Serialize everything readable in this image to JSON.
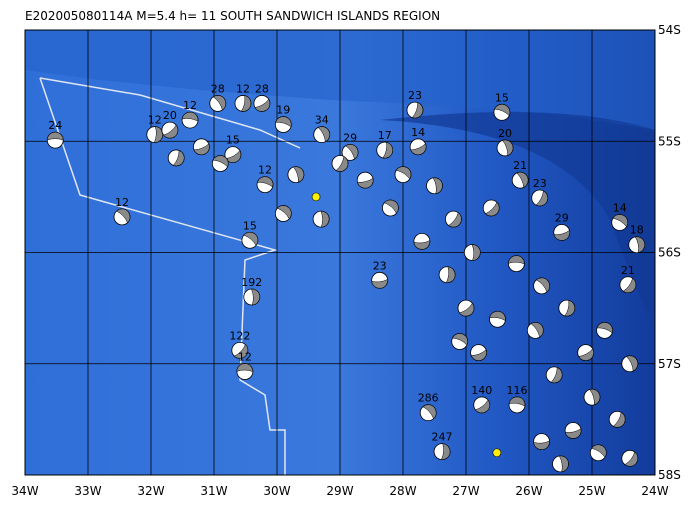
{
  "header": {
    "title": "E202005080114A  M=5.4  h= 11  SOUTH SANDWICH ISLANDS REGION"
  },
  "map": {
    "xlim": [
      -34,
      -24
    ],
    "ylim": [
      -58,
      -54
    ],
    "xticks": [
      {
        "value": -34,
        "label": "34W"
      },
      {
        "value": -33,
        "label": "33W"
      },
      {
        "value": -32,
        "label": "32W"
      },
      {
        "value": -31,
        "label": "31W"
      },
      {
        "value": -30,
        "label": "30W"
      },
      {
        "value": -29,
        "label": "29W"
      },
      {
        "value": -28,
        "label": "28W"
      },
      {
        "value": -27,
        "label": "27W"
      },
      {
        "value": -26,
        "label": "26W"
      },
      {
        "value": -25,
        "label": "25W"
      },
      {
        "value": -24,
        "label": "24W"
      }
    ],
    "yticks": [
      {
        "value": -54,
        "label": "54S"
      },
      {
        "value": -55,
        "label": "55S"
      },
      {
        "value": -56,
        "label": "56S"
      },
      {
        "value": -57,
        "label": "57S"
      },
      {
        "value": -58,
        "label": "58S"
      }
    ],
    "highlight": [
      {
        "lon": -29.38,
        "lat": -55.5
      },
      {
        "lon": -26.51,
        "lat": -57.8
      }
    ],
    "events": [
      {
        "lon": -33.52,
        "lat": -54.99,
        "depth": 24
      },
      {
        "lon": -32.46,
        "lat": -55.68,
        "depth": 12
      },
      {
        "lon": -31.94,
        "lat": -54.94,
        "depth": 12
      },
      {
        "lon": -31.7,
        "lat": -54.9,
        "depth": 20
      },
      {
        "lon": -31.38,
        "lat": -54.81,
        "depth": 12
      },
      {
        "lon": -30.94,
        "lat": -54.66,
        "depth": 28
      },
      {
        "lon": -30.54,
        "lat": -54.66,
        "depth": 12
      },
      {
        "lon": -30.24,
        "lat": -54.66,
        "depth": 28
      },
      {
        "lon": -29.9,
        "lat": -54.85,
        "depth": 19
      },
      {
        "lon": -29.29,
        "lat": -54.94,
        "depth": 34
      },
      {
        "lon": -27.81,
        "lat": -54.72,
        "depth": 23
      },
      {
        "lon": -27.76,
        "lat": -55.05,
        "depth": 14
      },
      {
        "lon": -26.43,
        "lat": -54.74,
        "depth": 15
      },
      {
        "lon": -26.38,
        "lat": -55.06,
        "depth": 20
      },
      {
        "lon": -25.83,
        "lat": -55.51,
        "depth": 23
      },
      {
        "lon": -25.48,
        "lat": -55.82,
        "depth": 29
      },
      {
        "lon": -24.56,
        "lat": -55.73,
        "depth": 14
      },
      {
        "lon": -24.29,
        "lat": -55.93,
        "depth": 18
      },
      {
        "lon": -24.43,
        "lat": -56.29,
        "depth": 21
      },
      {
        "lon": -28.37,
        "lat": -56.25,
        "depth": 23
      },
      {
        "lon": -30.43,
        "lat": -55.89,
        "depth": 15
      },
      {
        "lon": -30.4,
        "lat": -56.4,
        "depth": 192
      },
      {
        "lon": -30.59,
        "lat": -56.88,
        "depth": 122
      },
      {
        "lon": -30.51,
        "lat": -57.07,
        "depth": 12
      },
      {
        "lon": -27.6,
        "lat": -57.44,
        "depth": 286
      },
      {
        "lon": -27.38,
        "lat": -57.79,
        "depth": 247
      },
      {
        "lon": -26.75,
        "lat": -57.37,
        "depth": 140
      },
      {
        "lon": -26.19,
        "lat": -57.37,
        "depth": 116
      },
      {
        "lon": -28.84,
        "lat": -55.1,
        "depth": 29
      },
      {
        "lon": -28.29,
        "lat": -55.08,
        "depth": 17
      },
      {
        "lon": -30.7,
        "lat": -55.12,
        "depth": 15
      },
      {
        "lon": -30.19,
        "lat": -55.39,
        "depth": 12
      },
      {
        "lon": -26.14,
        "lat": -55.35,
        "depth": 21
      },
      {
        "lon": -31.6,
        "lat": -55.15
      },
      {
        "lon": -31.2,
        "lat": -55.05
      },
      {
        "lon": -30.9,
        "lat": -55.2
      },
      {
        "lon": -29.7,
        "lat": -55.3
      },
      {
        "lon": -29.0,
        "lat": -55.2
      },
      {
        "lon": -28.6,
        "lat": -55.35
      },
      {
        "lon": -28.0,
        "lat": -55.3
      },
      {
        "lon": -27.5,
        "lat": -55.4
      },
      {
        "lon": -27.2,
        "lat": -55.7
      },
      {
        "lon": -27.7,
        "lat": -55.9
      },
      {
        "lon": -28.2,
        "lat": -55.6
      },
      {
        "lon": -26.9,
        "lat": -56.0
      },
      {
        "lon": -26.6,
        "lat": -55.6
      },
      {
        "lon": -26.2,
        "lat": -56.1
      },
      {
        "lon": -25.8,
        "lat": -56.3
      },
      {
        "lon": -27.3,
        "lat": -56.2
      },
      {
        "lon": -27.0,
        "lat": -56.5
      },
      {
        "lon": -26.5,
        "lat": -56.6
      },
      {
        "lon": -25.9,
        "lat": -56.7
      },
      {
        "lon": -25.4,
        "lat": -56.5
      },
      {
        "lon": -25.1,
        "lat": -56.9
      },
      {
        "lon": -24.8,
        "lat": -56.7
      },
      {
        "lon": -24.4,
        "lat": -57.0
      },
      {
        "lon": -25.6,
        "lat": -57.1
      },
      {
        "lon": -26.8,
        "lat": -56.9
      },
      {
        "lon": -27.1,
        "lat": -56.8
      },
      {
        "lon": -25.0,
        "lat": -57.3
      },
      {
        "lon": -24.6,
        "lat": -57.5
      },
      {
        "lon": -25.3,
        "lat": -57.6
      },
      {
        "lon": -24.9,
        "lat": -57.8
      },
      {
        "lon": -25.5,
        "lat": -57.9
      },
      {
        "lon": -24.4,
        "lat": -57.85
      },
      {
        "lon": -25.8,
        "lat": -57.7
      },
      {
        "lon": -29.9,
        "lat": -55.65
      },
      {
        "lon": -29.3,
        "lat": -55.7
      }
    ]
  }
}
